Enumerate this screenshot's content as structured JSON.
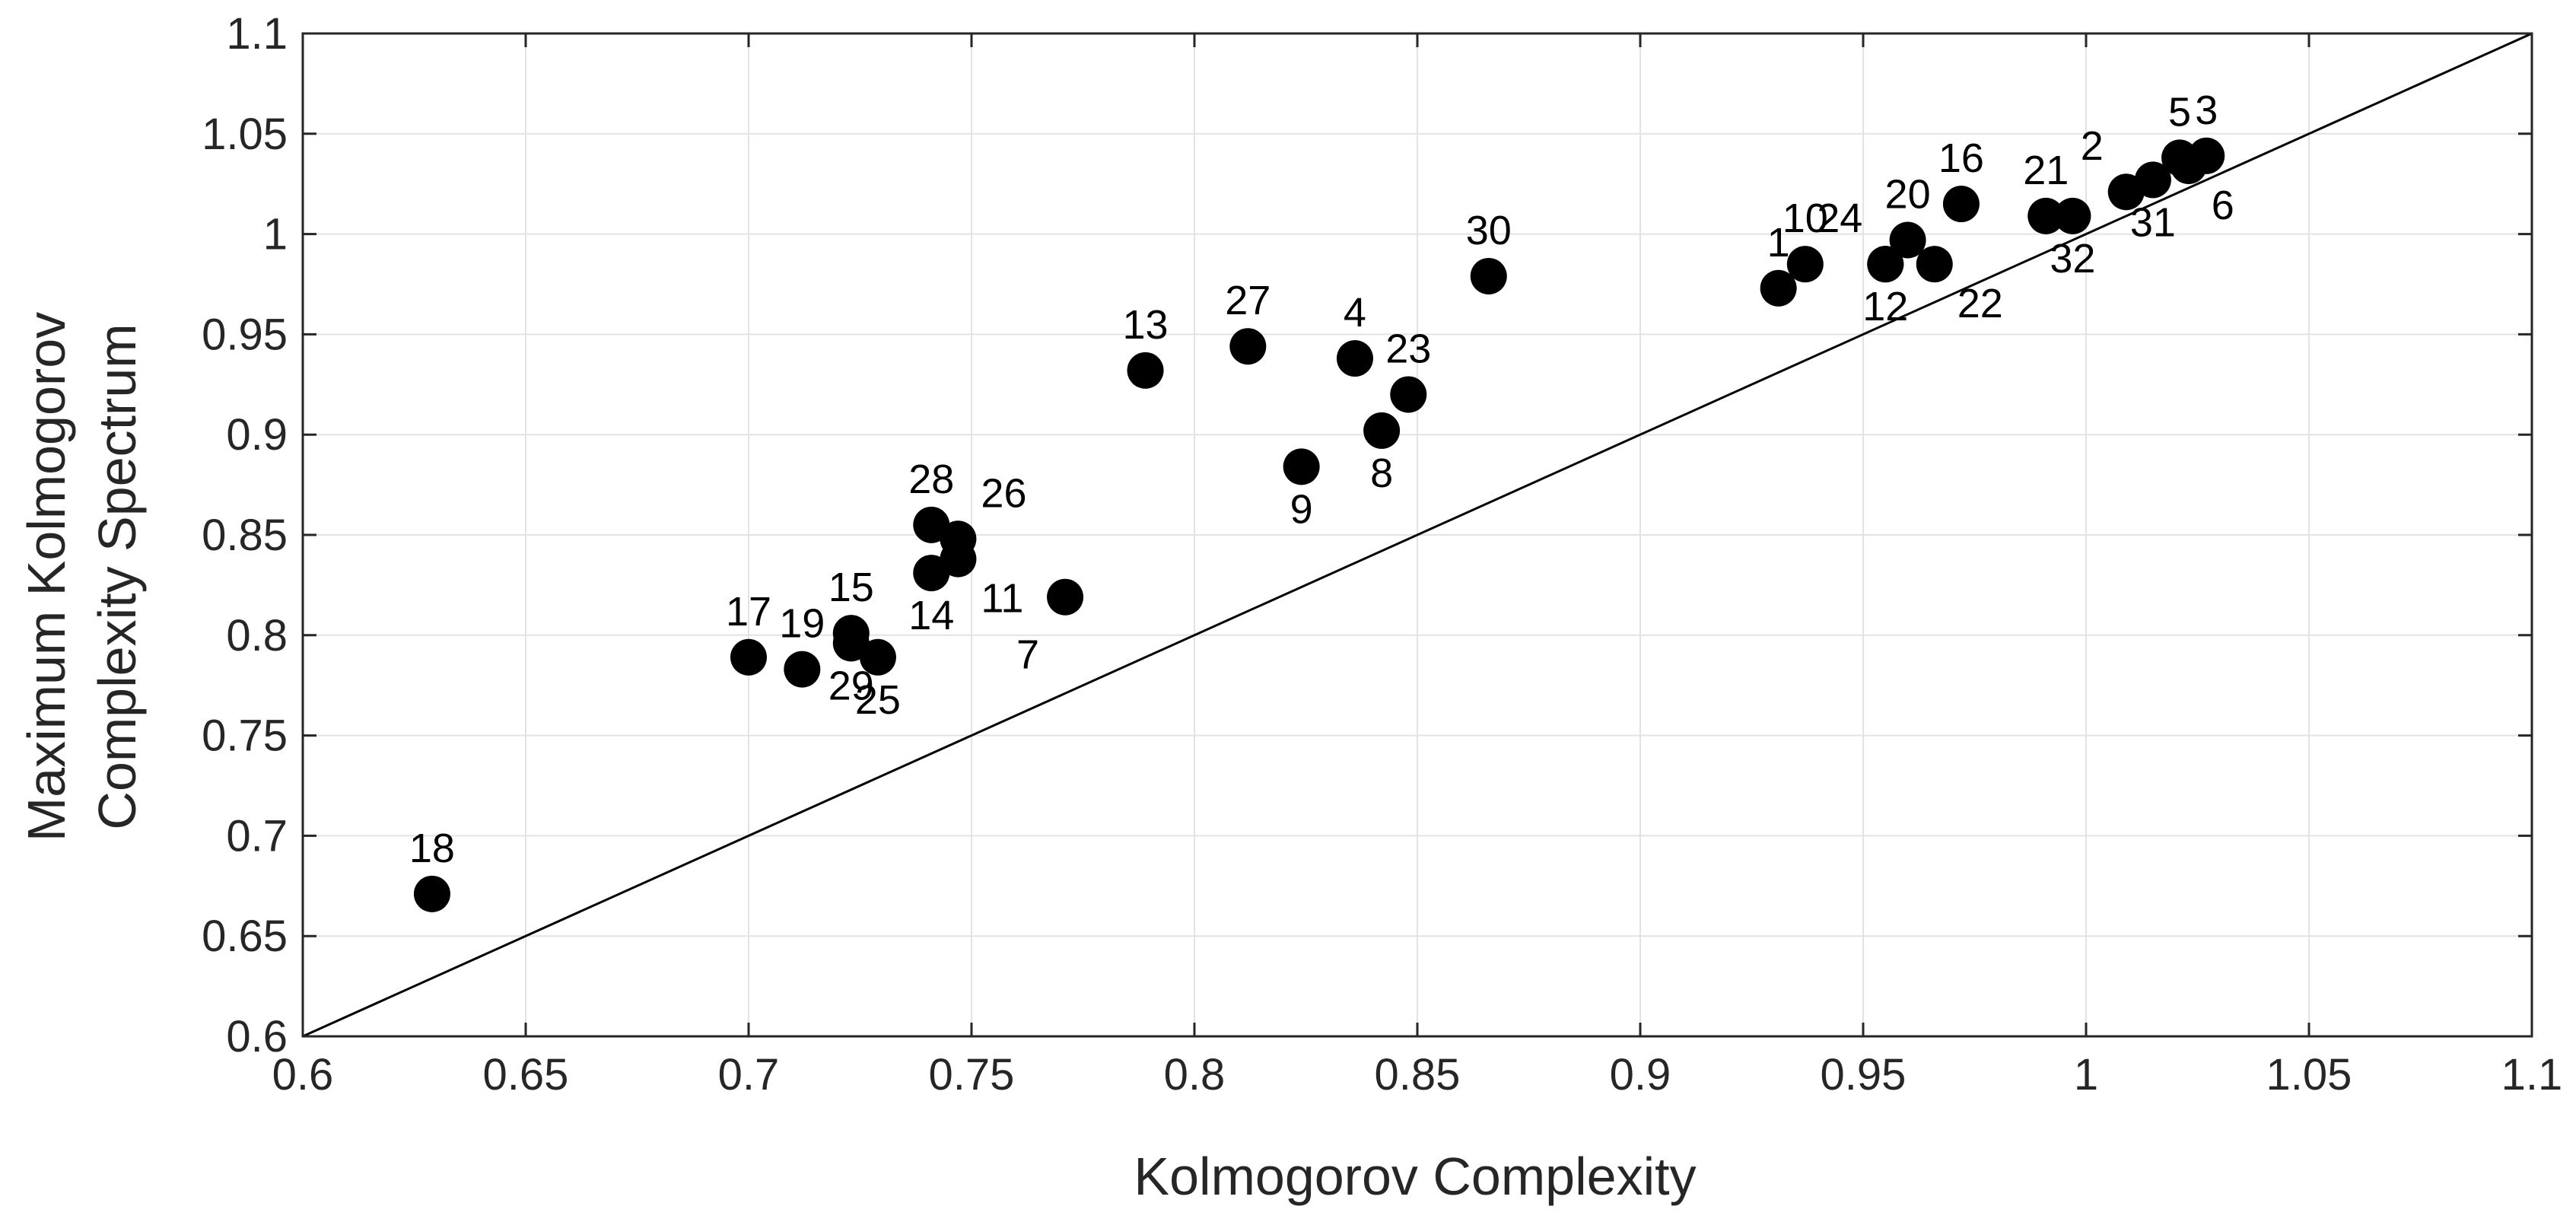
{
  "chart_data": {
    "type": "scatter",
    "title": "",
    "xlabel": "Kolmogorov Complexity",
    "ylabel_lines": [
      "Maximum Kolmogorov",
      "Complexity Spectrum"
    ],
    "xlim": [
      0.6,
      1.1
    ],
    "ylim": [
      0.6,
      1.1
    ],
    "grid": true,
    "x_ticks": [
      0.6,
      0.65,
      0.7,
      0.75,
      0.8,
      0.85,
      0.9,
      0.95,
      1,
      1.05,
      1.1
    ],
    "x_tick_labels": [
      "0.6",
      "0.65",
      "0.7",
      "0.75",
      "0.8",
      "0.85",
      "0.9",
      "0.95",
      "1",
      "1.05",
      "1.1"
    ],
    "y_ticks": [
      0.6,
      0.65,
      0.7,
      0.75,
      0.8,
      0.85,
      0.9,
      0.95,
      1,
      1.05,
      1.1
    ],
    "y_tick_labels": [
      "0.6",
      "0.65",
      "0.7",
      "0.75",
      "0.8",
      "0.85",
      "0.9",
      "0.95",
      "1",
      "1.05",
      "1.1"
    ],
    "reference_line": {
      "from": [
        0.6,
        0.6
      ],
      "to": [
        1.1,
        1.1
      ],
      "color": "#000000"
    },
    "marker_color": "#000000",
    "points": [
      {
        "label": "1",
        "x": 0.931,
        "y": 0.973,
        "label_pos": "above"
      },
      {
        "label": "2",
        "x": 1.009,
        "y": 1.021,
        "label_pos": "above-left"
      },
      {
        "label": "3",
        "x": 1.027,
        "y": 1.039,
        "label_pos": "above"
      },
      {
        "label": "4",
        "x": 0.836,
        "y": 0.938,
        "label_pos": "above"
      },
      {
        "label": "5",
        "x": 1.021,
        "y": 1.038,
        "label_pos": "above"
      },
      {
        "label": "6",
        "x": 1.023,
        "y": 1.034,
        "label_pos": "below-right"
      },
      {
        "label": "7",
        "x": 0.771,
        "y": 0.819,
        "label_pos": "below-left"
      },
      {
        "label": "8",
        "x": 0.842,
        "y": 0.902,
        "label_pos": "below"
      },
      {
        "label": "9",
        "x": 0.824,
        "y": 0.884,
        "label_pos": "below"
      },
      {
        "label": "10",
        "x": 0.937,
        "y": 0.985,
        "label_pos": "above"
      },
      {
        "label": "11",
        "x": 0.747,
        "y": 0.838,
        "label_pos": "below-right"
      },
      {
        "label": "12",
        "x": 0.955,
        "y": 0.985,
        "label_pos": "below"
      },
      {
        "label": "13",
        "x": 0.789,
        "y": 0.932,
        "label_pos": "above"
      },
      {
        "label": "14",
        "x": 0.741,
        "y": 0.831,
        "label_pos": "below"
      },
      {
        "label": "15",
        "x": 0.723,
        "y": 0.801,
        "label_pos": "above"
      },
      {
        "label": "16",
        "x": 0.972,
        "y": 1.015,
        "label_pos": "above"
      },
      {
        "label": "17",
        "x": 0.7,
        "y": 0.789,
        "label_pos": "above"
      },
      {
        "label": "18",
        "x": 0.629,
        "y": 0.671,
        "label_pos": "above"
      },
      {
        "label": "19",
        "x": 0.712,
        "y": 0.783,
        "label_pos": "above"
      },
      {
        "label": "20",
        "x": 0.96,
        "y": 0.997,
        "label_pos": "above"
      },
      {
        "label": "21",
        "x": 0.991,
        "y": 1.009,
        "label_pos": "above"
      },
      {
        "label": "22",
        "x": 0.966,
        "y": 0.985,
        "label_pos": "below-right"
      },
      {
        "label": "23",
        "x": 0.848,
        "y": 0.92,
        "label_pos": "above"
      },
      {
        "label": "24",
        "x": 0.955,
        "y": 0.985,
        "label_pos": "above-left"
      },
      {
        "label": "25",
        "x": 0.729,
        "y": 0.789,
        "label_pos": "below"
      },
      {
        "label": "26",
        "x": 0.747,
        "y": 0.848,
        "label_pos": "above-right"
      },
      {
        "label": "27",
        "x": 0.812,
        "y": 0.944,
        "label_pos": "above"
      },
      {
        "label": "28",
        "x": 0.741,
        "y": 0.855,
        "label_pos": "above"
      },
      {
        "label": "29",
        "x": 0.723,
        "y": 0.796,
        "label_pos": "below"
      },
      {
        "label": "30",
        "x": 0.866,
        "y": 0.979,
        "label_pos": "above"
      },
      {
        "label": "31",
        "x": 1.015,
        "y": 1.027,
        "label_pos": "below"
      },
      {
        "label": "32",
        "x": 0.997,
        "y": 1.009,
        "label_pos": "below"
      }
    ]
  }
}
